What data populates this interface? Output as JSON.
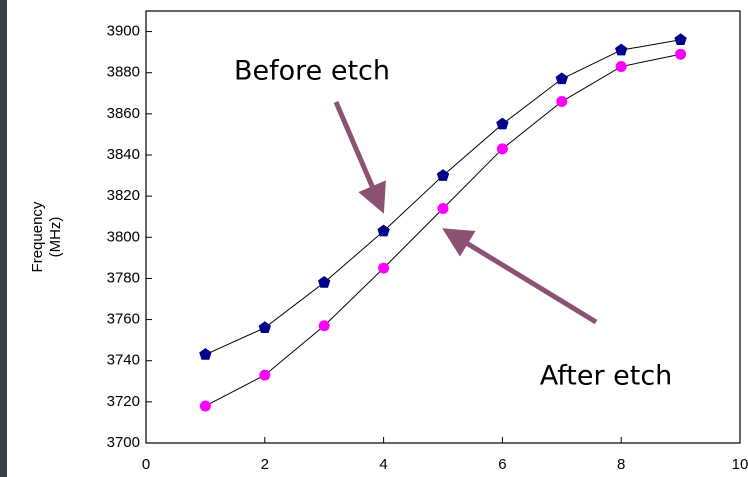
{
  "chart_data": {
    "type": "line",
    "y_label": "Frequency\n(MHz)",
    "x": [
      1,
      2,
      3,
      4,
      5,
      6,
      7,
      8,
      9
    ],
    "series": [
      {
        "name": "Before etch",
        "color": "#00008b",
        "marker": "pentagon",
        "values": [
          3743,
          3756,
          3778,
          3803,
          3830,
          3855,
          3877,
          3891,
          3896
        ]
      },
      {
        "name": "After etch",
        "color": "#ff00ff",
        "marker": "circle",
        "values": [
          3718,
          3733,
          3757,
          3785,
          3814,
          3843,
          3866,
          3883,
          3889
        ]
      }
    ],
    "xlim": [
      0,
      10
    ],
    "xticks": [
      0,
      2,
      4,
      6,
      8,
      10
    ],
    "ylim": [
      3700,
      3910
    ],
    "yticks": [
      3700,
      3720,
      3740,
      3760,
      3780,
      3800,
      3820,
      3840,
      3860,
      3880,
      3900
    ]
  }
}
